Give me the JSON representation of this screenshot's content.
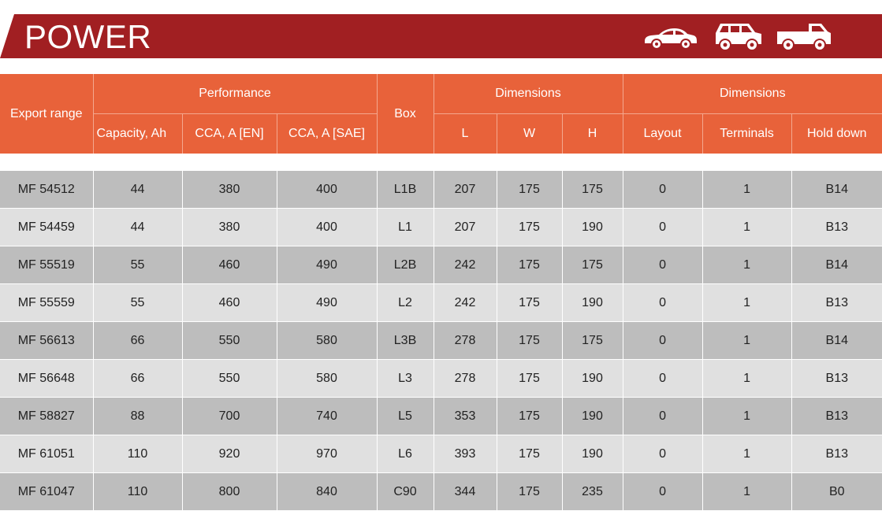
{
  "banner": {
    "title": "POWER",
    "icons": [
      "car-sedan-icon",
      "suv-icon",
      "pickup-truck-icon"
    ],
    "color": "#a11f22"
  },
  "table": {
    "header_color": "#e8623a",
    "headers": {
      "export_range": "Export range",
      "performance": "Performance",
      "capacity": "Capacity, Ah",
      "cca_en": "CCA, A [EN]",
      "cca_sae": "CCA, A [SAE]",
      "box": "Box",
      "dimensions_1": "Dimensions",
      "l": "L",
      "w": "W",
      "h": "H",
      "dimensions_2": "Dimensions",
      "layout": "Layout",
      "terminals": "Terminals",
      "hold_down": "Hold down"
    },
    "rows": [
      [
        "MF 54512",
        "44",
        "380",
        "400",
        "L1B",
        "207",
        "175",
        "175",
        "0",
        "1",
        "B14"
      ],
      [
        "MF 54459",
        "44",
        "380",
        "400",
        "L1",
        "207",
        "175",
        "190",
        "0",
        "1",
        "B13"
      ],
      [
        "MF 55519",
        "55",
        "460",
        "490",
        "L2B",
        "242",
        "175",
        "175",
        "0",
        "1",
        "B14"
      ],
      [
        "MF 55559",
        "55",
        "460",
        "490",
        "L2",
        "242",
        "175",
        "190",
        "0",
        "1",
        "B13"
      ],
      [
        "MF 56613",
        "66",
        "550",
        "580",
        "L3B",
        "278",
        "175",
        "175",
        "0",
        "1",
        "B14"
      ],
      [
        "MF 56648",
        "66",
        "550",
        "580",
        "L3",
        "278",
        "175",
        "190",
        "0",
        "1",
        "B13"
      ],
      [
        "MF 58827",
        "88",
        "700",
        "740",
        "L5",
        "353",
        "175",
        "190",
        "0",
        "1",
        "B13"
      ],
      [
        "MF 61051",
        "110",
        "920",
        "970",
        "L6",
        "393",
        "175",
        "190",
        "0",
        "1",
        "B13"
      ],
      [
        "MF 61047",
        "110",
        "800",
        "840",
        "C90",
        "344",
        "175",
        "235",
        "0",
        "1",
        "B0"
      ]
    ]
  }
}
